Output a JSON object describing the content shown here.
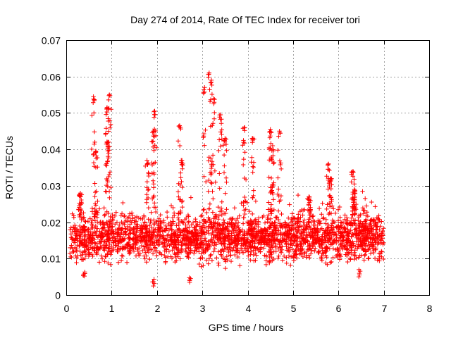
{
  "chart_data": {
    "type": "scatter",
    "title": "Day 274 of 2014, Rate Of TEC Index for receiver tori",
    "xlabel": "GPS time / hours",
    "ylabel": "ROTI / TECUs",
    "xlim": [
      0,
      8
    ],
    "ylim": [
      0,
      0.07
    ],
    "xticks": [
      "0",
      "1",
      "2",
      "3",
      "4",
      "5",
      "6",
      "7",
      "8"
    ],
    "yticks": [
      "0",
      "0.01",
      "0.02",
      "0.03",
      "0.04",
      "0.05",
      "0.06",
      "0.07"
    ],
    "grid": true,
    "marker": "+",
    "marker_color": "#ff0000",
    "data_x_range": [
      0.08,
      7.0
    ],
    "baseline_band": [
      0.007,
      0.022
    ],
    "peaks": [
      {
        "x": 0.31,
        "y": 0.028
      },
      {
        "x": 0.6,
        "y": 0.0545
      },
      {
        "x": 0.65,
        "y": 0.0395
      },
      {
        "x": 0.9,
        "y": 0.0515
      },
      {
        "x": 0.95,
        "y": 0.055
      },
      {
        "x": 0.92,
        "y": 0.042
      },
      {
        "x": 1.78,
        "y": 0.037
      },
      {
        "x": 1.95,
        "y": 0.0505
      },
      {
        "x": 1.92,
        "y": 0.045
      },
      {
        "x": 2.5,
        "y": 0.0465
      },
      {
        "x": 2.55,
        "y": 0.037
      },
      {
        "x": 3.05,
        "y": 0.057
      },
      {
        "x": 3.15,
        "y": 0.061
      },
      {
        "x": 3.2,
        "y": 0.059
      },
      {
        "x": 3.25,
        "y": 0.054
      },
      {
        "x": 3.4,
        "y": 0.0495
      },
      {
        "x": 3.5,
        "y": 0.043
      },
      {
        "x": 3.93,
        "y": 0.046
      },
      {
        "x": 4.1,
        "y": 0.043
      },
      {
        "x": 4.5,
        "y": 0.0455
      },
      {
        "x": 4.55,
        "y": 0.041
      },
      {
        "x": 4.7,
        "y": 0.045
      },
      {
        "x": 5.35,
        "y": 0.027
      },
      {
        "x": 5.78,
        "y": 0.036
      },
      {
        "x": 5.82,
        "y": 0.032
      },
      {
        "x": 6.32,
        "y": 0.034
      },
      {
        "x": 6.35,
        "y": 0.029
      }
    ],
    "low_outliers": [
      {
        "x": 0.4,
        "y": 0.0052
      },
      {
        "x": 1.92,
        "y": 0.0025
      },
      {
        "x": 2.72,
        "y": 0.0035
      },
      {
        "x": 6.45,
        "y": 0.005
      }
    ]
  }
}
